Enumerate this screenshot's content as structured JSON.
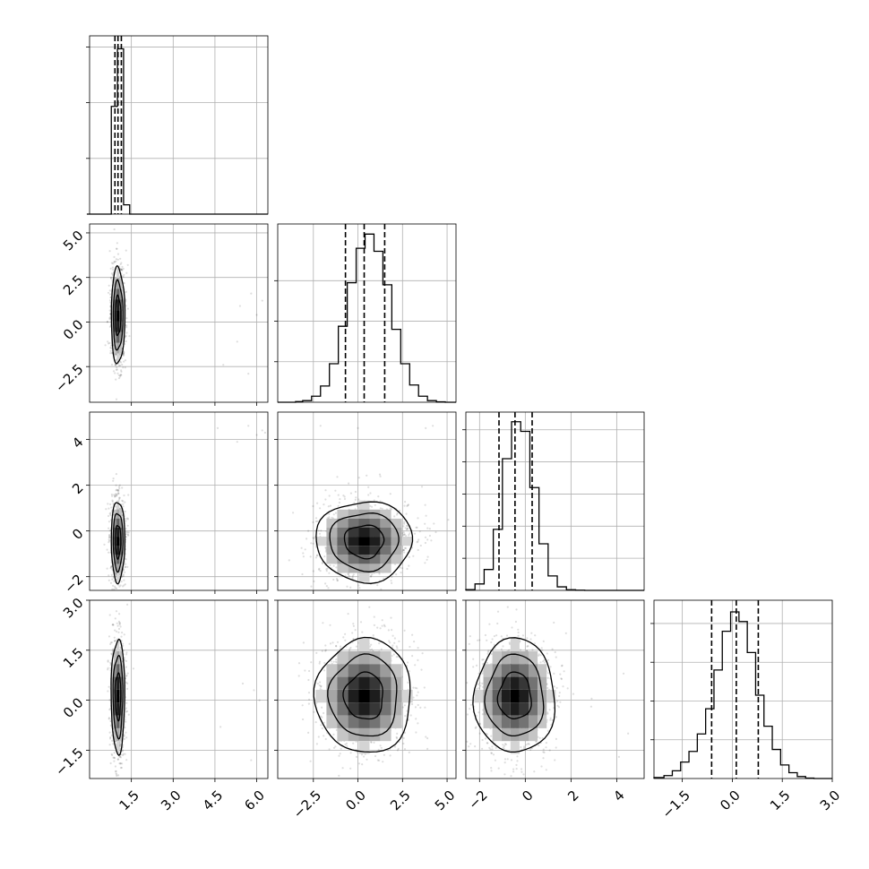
{
  "chart_data": {
    "type": "corner",
    "grid": true,
    "parameters": [
      {
        "range": [
          0,
          6.4
        ],
        "ticks": [
          1.5,
          3.0,
          4.5,
          6.0
        ],
        "tick_labels": [
          "1.5",
          "3.0",
          "4.5",
          "6.0"
        ],
        "quantiles": [
          0.91,
          1.02,
          1.14
        ],
        "center": 1.02,
        "spread": 0.1
      },
      {
        "range": [
          -4.5,
          5.5
        ],
        "ticks": [
          -2.5,
          0.0,
          2.5,
          5.0
        ],
        "tick_labels": [
          "−2.5",
          "0.0",
          "2.5",
          "5.0"
        ],
        "quantiles": [
          -0.7,
          0.35,
          1.5
        ],
        "center": 0.35,
        "spread": 1.1
      },
      {
        "range": [
          -2.6,
          5.2
        ],
        "ticks": [
          -2,
          0,
          2,
          4
        ],
        "tick_labels": [
          "−2",
          "0",
          "2",
          "4"
        ],
        "quantiles": [
          -1.15,
          -0.45,
          0.3
        ],
        "center": -0.45,
        "spread": 0.72
      },
      {
        "range": [
          -2.35,
          3.0
        ],
        "ticks": [
          -1.5,
          0.0,
          1.5,
          3.0
        ],
        "tick_labels": [
          "−1.5",
          "0.0",
          "1.5",
          "3.0"
        ],
        "quantiles": [
          -0.62,
          0.12,
          0.78
        ],
        "center": 0.12,
        "spread": 0.7
      }
    ],
    "histograms": [
      {
        "bins": [
          -0.1,
          0.12,
          0.34,
          0.56,
          0.78,
          1.0,
          1.22,
          1.44,
          1.66,
          1.88,
          2.1
        ],
        "counts": [
          0,
          0,
          0,
          0,
          290,
          445,
          25,
          0,
          0,
          0
        ],
        "ylim": [
          0,
          480
        ],
        "ticks": [
          150,
          300,
          450
        ]
      },
      {
        "bins": [
          -3.5,
          -3.1,
          -2.6,
          -2.1,
          -1.6,
          -1.1,
          -0.6,
          -0.1,
          0.4,
          0.9,
          1.4,
          1.9,
          2.4,
          2.9,
          3.4,
          3.9,
          4.4,
          4.9
        ],
        "counts": [
          3,
          8,
          30,
          80,
          190,
          375,
          590,
          760,
          830,
          745,
          580,
          360,
          190,
          85,
          30,
          8,
          2
        ],
        "ylim": [
          0,
          880
        ],
        "ticks": [
          200,
          400,
          600
        ]
      },
      {
        "bins": [
          -2.6,
          -2.2,
          -1.8,
          -1.4,
          -1.0,
          -0.6,
          -0.2,
          0.2,
          0.6,
          1.0,
          1.4,
          1.8,
          2.2,
          2.6
        ],
        "counts": [
          5,
          40,
          130,
          380,
          820,
          1050,
          990,
          640,
          290,
          90,
          22,
          4,
          1
        ],
        "ylim": [
          0,
          1110
        ],
        "ticks": [
          200,
          400,
          600,
          800,
          1000
        ]
      },
      {
        "bins": [
          -2.35,
          -2.05,
          -1.8,
          -1.55,
          -1.3,
          -1.05,
          -0.8,
          -0.55,
          -0.3,
          -0.05,
          0.2,
          0.45,
          0.7,
          0.95,
          1.2,
          1.45,
          1.7,
          1.95,
          2.2,
          2.45
        ],
        "counts": [
          5,
          15,
          40,
          85,
          140,
          230,
          360,
          560,
          760,
          860,
          810,
          650,
          430,
          270,
          150,
          70,
          30,
          10,
          2
        ],
        "ylim": [
          0,
          920
        ],
        "ticks": [
          200,
          400,
          600,
          800
        ]
      }
    ],
    "contour_levels": [
      0.39,
      0.86,
      0.99
    ],
    "outliers": [
      {
        "px": 0,
        "py": 1,
        "x": [
          5.4,
          6.0,
          5.8,
          5.3,
          4.8,
          6.2,
          5.7
        ],
        "y": [
          0.9,
          0.4,
          1.6,
          -1.1,
          -2.4,
          1.2,
          -2.9
        ]
      },
      {
        "px": 0,
        "py": 2,
        "x": [
          5.7,
          6.2,
          6.0,
          4.6,
          5.3,
          6.3
        ],
        "y": [
          4.6,
          4.4,
          4.2,
          4.5,
          3.9,
          4.3
        ]
      },
      {
        "px": 0,
        "py": 3,
        "x": [
          5.5,
          6.1,
          5.8,
          4.7,
          5.9
        ],
        "y": [
          0.5,
          0.0,
          -1.8,
          -0.8,
          0.3
        ]
      },
      {
        "px": 1,
        "py": 2,
        "x": [
          -2.1,
          0.0,
          3.8,
          4.2
        ],
        "y": [
          4.6,
          4.5,
          4.5,
          4.6
        ]
      },
      {
        "px": 2,
        "py": 3,
        "x": [
          4.3,
          4.5,
          4.1
        ],
        "y": [
          0.8,
          -1.0,
          -1.7
        ]
      }
    ]
  }
}
